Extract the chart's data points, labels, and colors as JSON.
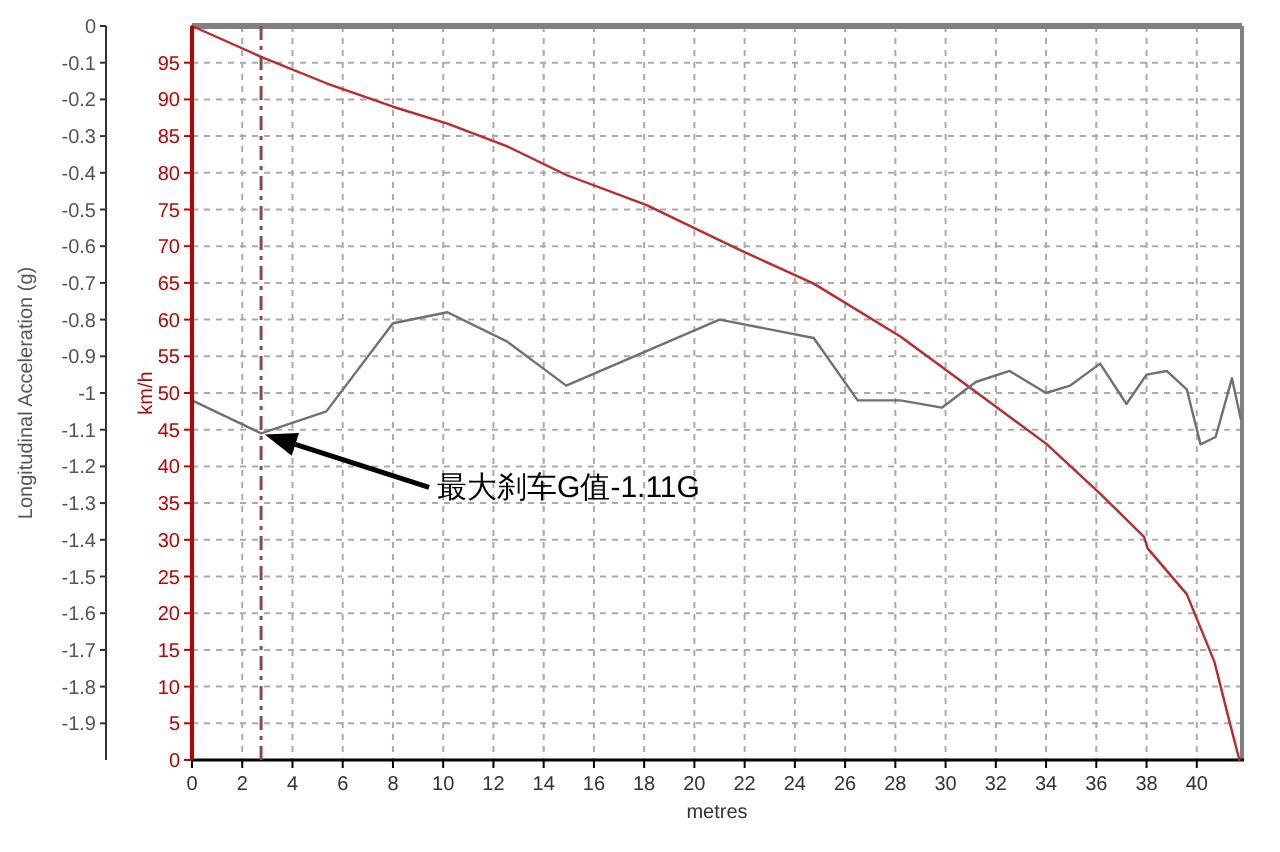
{
  "chart_data": {
    "type": "line",
    "xlabel": "metres",
    "ylabel": "km/h",
    "y2label": "Longitudinal Acceleration (g)",
    "xlim": [
      0,
      41.8
    ],
    "xticks": [
      0,
      2,
      4,
      6,
      8,
      10,
      12,
      14,
      16,
      18,
      20,
      22,
      24,
      26,
      28,
      30,
      32,
      34,
      36,
      38,
      40
    ],
    "ylim": [
      0,
      100
    ],
    "yticks": [
      0,
      5,
      10,
      15,
      20,
      25,
      30,
      35,
      40,
      45,
      50,
      55,
      60,
      65,
      70,
      75,
      80,
      85,
      90,
      95
    ],
    "y2lim": [
      -2,
      0
    ],
    "y2ticks": [
      0,
      -0.1,
      -0.2,
      -0.3,
      -0.4,
      -0.5,
      -0.6,
      -0.7,
      -0.8,
      -0.9,
      -1,
      -1.1,
      -1.2,
      -1.3,
      -1.4,
      -1.5,
      -1.6,
      -1.7,
      -1.8,
      -1.9
    ],
    "grid": true,
    "series": [
      {
        "color": "#c0282d",
        "x": [
          0,
          2.75,
          5.35,
          8,
          10.17,
          12.55,
          14.9,
          18.1,
          21.8,
          24.75,
          28.2,
          31.1,
          34,
          36.15,
          37.9,
          38.05,
          39.6,
          40.7,
          41.4,
          41.7
        ],
        "values": [
          100,
          95.8,
          92.2,
          89,
          86.7,
          83.6,
          79.7,
          75.6,
          69.5,
          64.9,
          57.7,
          50.4,
          43.1,
          36.3,
          30.4,
          28.8,
          22.6,
          13.4,
          3.9,
          0
        ]
      },
      {
        "color": "#707070",
        "axis": "y2",
        "x": [
          0,
          2.75,
          5.35,
          8,
          10.17,
          12.55,
          14.9,
          21,
          24.75,
          26.5,
          28.2,
          29.85,
          31.2,
          32.55,
          34,
          34.95,
          36.15,
          37.2,
          38,
          38.8,
          39.6,
          40.15,
          40.75,
          41.4,
          41.75
        ],
        "values": [
          -1.02,
          -1.11,
          -1.05,
          -0.81,
          -0.78,
          -0.86,
          -0.98,
          -0.8,
          -0.85,
          -1.02,
          -1.02,
          -1.04,
          -0.97,
          -0.94,
          -1,
          -0.98,
          -0.92,
          -1.03,
          -0.95,
          -0.94,
          -0.99,
          -1.14,
          -1.12,
          -0.96,
          -1.07
        ]
      }
    ],
    "ref_lines": [
      {
        "axis": "x",
        "value": 2.75,
        "color": "#8b4a4a",
        "line_style": "dashed"
      }
    ],
    "annotations": [
      "最大刹车G值-1.11G"
    ]
  }
}
